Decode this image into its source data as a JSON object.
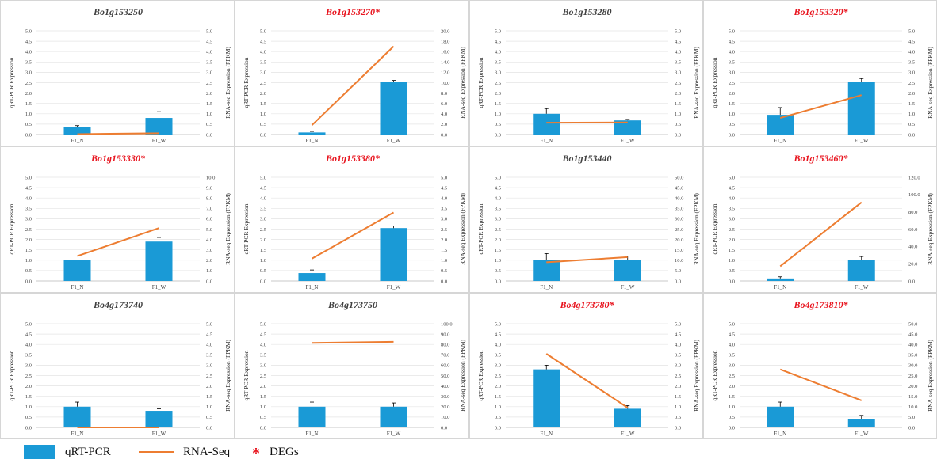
{
  "legend": {
    "bar_label": "qRT-PCR",
    "line_label": "RNA-Seq",
    "star_label": "DEGs",
    "star_symbol": "*"
  },
  "colors": {
    "bar": "#1a9ad6",
    "line": "#ed7d31",
    "deg_title": "#e8141e",
    "normal_title": "#404040"
  },
  "chart_data": [
    {
      "type": "bar",
      "title": "Bo1g153250",
      "deg": false,
      "categories": [
        "F1_N",
        "F1_W"
      ],
      "ylabel": "qRT-PCR Expression",
      "y2label": "RNA-seq Expression (FPKM)",
      "ylim": [
        0,
        5.0
      ],
      "yticks": [
        "0.0",
        "0.5",
        "1.0",
        "1.5",
        "2.0",
        "2.5",
        "3.0",
        "3.5",
        "4.0",
        "4.5",
        "5.0"
      ],
      "y2lim": [
        0,
        5.0
      ],
      "y2ticks": [
        "0.0",
        "0.5",
        "1.0",
        "1.5",
        "2.0",
        "2.5",
        "3.0",
        "3.5",
        "4.0",
        "4.5",
        "5.0"
      ],
      "series": [
        {
          "name": "qRT-PCR",
          "type": "bar",
          "values": [
            0.35,
            0.8
          ],
          "errors": [
            0.08,
            0.3
          ]
        },
        {
          "name": "RNA-Seq",
          "type": "line",
          "axis": "right",
          "values": [
            0.02,
            0.06
          ]
        }
      ]
    },
    {
      "type": "bar",
      "title": "Bo1g153270*",
      "deg": true,
      "categories": [
        "F1_N",
        "F1_W"
      ],
      "ylabel": "qRT-PCR Expression",
      "y2label": "RNA-seq Expression (FPKM)",
      "ylim": [
        0,
        5.0
      ],
      "yticks": [
        "0.0",
        "0.5",
        "1.0",
        "1.5",
        "2.0",
        "2.5",
        "3.0",
        "3.5",
        "4.0",
        "4.5",
        "5.0"
      ],
      "y2lim": [
        0,
        20.0
      ],
      "y2ticks": [
        "0.0",
        "2.0",
        "4.0",
        "6.0",
        "8.0",
        "10.0",
        "12.0",
        "14.0",
        "16.0",
        "18.0",
        "20.0"
      ],
      "series": [
        {
          "name": "qRT-PCR",
          "type": "bar",
          "values": [
            0.1,
            2.55
          ],
          "errors": [
            0.05,
            0.06
          ]
        },
        {
          "name": "RNA-Seq",
          "type": "line",
          "axis": "right",
          "values": [
            1.8,
            17.0
          ]
        }
      ]
    },
    {
      "type": "bar",
      "title": "Bo1g153280",
      "deg": false,
      "categories": [
        "F1_N",
        "F1_W"
      ],
      "ylabel": "qRT-PCR Expression",
      "y2label": "RNA-seq Expression (FPKM)",
      "ylim": [
        0,
        5.0
      ],
      "yticks": [
        "0.0",
        "0.5",
        "1.0",
        "1.5",
        "2.0",
        "2.5",
        "3.0",
        "3.5",
        "4.0",
        "4.5",
        "5.0"
      ],
      "y2lim": [
        0,
        5.0
      ],
      "y2ticks": [
        "0.0",
        "0.5",
        "1.0",
        "1.5",
        "2.0",
        "2.5",
        "3.0",
        "3.5",
        "4.0",
        "4.5",
        "5.0"
      ],
      "series": [
        {
          "name": "qRT-PCR",
          "type": "bar",
          "values": [
            1.0,
            0.68
          ],
          "errors": [
            0.25,
            0.05
          ]
        },
        {
          "name": "RNA-Seq",
          "type": "line",
          "axis": "right",
          "values": [
            0.57,
            0.58
          ]
        }
      ]
    },
    {
      "type": "bar",
      "title": "Bo1g153320*",
      "deg": true,
      "categories": [
        "F1_N",
        "F1_W"
      ],
      "ylabel": "qRT-PCR Expression",
      "y2label": "RNA-seq Expression (FPKM)",
      "ylim": [
        0,
        5.0
      ],
      "yticks": [
        "0.0",
        "0.5",
        "1.0",
        "1.5",
        "2.0",
        "2.5",
        "3.0",
        "3.5",
        "4.0",
        "4.5",
        "5.0"
      ],
      "y2lim": [
        0,
        5.0
      ],
      "y2ticks": [
        "0.0",
        "0.5",
        "1.0",
        "1.5",
        "2.0",
        "2.5",
        "3.0",
        "3.5",
        "4.0",
        "4.5",
        "5.0"
      ],
      "series": [
        {
          "name": "qRT-PCR",
          "type": "bar",
          "values": [
            0.95,
            2.55
          ],
          "errors": [
            0.35,
            0.15
          ]
        },
        {
          "name": "RNA-Seq",
          "type": "line",
          "axis": "right",
          "values": [
            0.8,
            1.9
          ]
        }
      ]
    },
    {
      "type": "bar",
      "title": "Bo1g153330*",
      "deg": true,
      "categories": [
        "F1_N",
        "F1_W"
      ],
      "ylabel": "qRT-PCR Expression",
      "y2label": "RNA-seq Expression (FPKM)",
      "ylim": [
        0,
        5.0
      ],
      "yticks": [
        "0.0",
        "0.5",
        "1.0",
        "1.5",
        "2.0",
        "2.5",
        "3.0",
        "3.5",
        "4.0",
        "4.5",
        "5.0"
      ],
      "y2lim": [
        0,
        10.0
      ],
      "y2ticks": [
        "0.0",
        "1.0",
        "2.0",
        "3.0",
        "4.0",
        "5.0",
        "6.0",
        "7.0",
        "8.0",
        "9.0",
        "10.0"
      ],
      "series": [
        {
          "name": "qRT-PCR",
          "type": "bar",
          "values": [
            1.0,
            1.9
          ],
          "errors": [
            0.0,
            0.2
          ]
        },
        {
          "name": "RNA-Seq",
          "type": "line",
          "axis": "right",
          "values": [
            2.4,
            5.1
          ]
        }
      ]
    },
    {
      "type": "bar",
      "title": "Bo1g153380*",
      "deg": true,
      "categories": [
        "F1_N",
        "F1_W"
      ],
      "ylabel": "qRT-PCR Expression",
      "y2label": "RNA-seq Expression (FPKM)",
      "ylim": [
        0,
        5.0
      ],
      "yticks": [
        "0.0",
        "0.5",
        "1.0",
        "1.5",
        "2.0",
        "2.5",
        "3.0",
        "3.5",
        "4.0",
        "4.5",
        "5.0"
      ],
      "y2lim": [
        0,
        5.0
      ],
      "y2ticks": [
        "0.0",
        "0.5",
        "1.0",
        "1.5",
        "2.0",
        "2.5",
        "3.0",
        "3.5",
        "4.0",
        "4.5",
        "5.0"
      ],
      "series": [
        {
          "name": "qRT-PCR",
          "type": "bar",
          "values": [
            0.38,
            2.55
          ],
          "errors": [
            0.15,
            0.1
          ]
        },
        {
          "name": "RNA-Seq",
          "type": "line",
          "axis": "right",
          "values": [
            1.08,
            3.3
          ]
        }
      ]
    },
    {
      "type": "bar",
      "title": "Bo1g153440",
      "deg": false,
      "categories": [
        "F1_N",
        "F1_W"
      ],
      "ylabel": "qRT-PCR Expression",
      "y2label": "RNA-seq Expression (FPKM)",
      "ylim": [
        0,
        5.0
      ],
      "yticks": [
        "0.0",
        "0.5",
        "1.0",
        "1.5",
        "2.0",
        "2.5",
        "3.0",
        "3.5",
        "4.0",
        "4.5",
        "5.0"
      ],
      "y2lim": [
        0,
        50.0
      ],
      "y2ticks": [
        "0.0",
        "5.0",
        "10.0",
        "15.0",
        "20.0",
        "25.0",
        "30.0",
        "35.0",
        "40.0",
        "45.0",
        "50.0"
      ],
      "series": [
        {
          "name": "qRT-PCR",
          "type": "bar",
          "values": [
            1.02,
            1.0
          ],
          "errors": [
            0.3,
            0.2
          ]
        },
        {
          "name": "RNA-Seq",
          "type": "line",
          "axis": "right",
          "values": [
            9.0,
            11.5
          ]
        }
      ]
    },
    {
      "type": "bar",
      "title": "Bo1g153460*",
      "deg": true,
      "categories": [
        "F1_N",
        "F1_W"
      ],
      "ylabel": "qRT-PCR Expression",
      "y2label": "RNA-seq Expression (FPKM)",
      "ylim": [
        0,
        5.0
      ],
      "yticks": [
        "0.0",
        "0.5",
        "1.0",
        "1.5",
        "2.0",
        "2.5",
        "3.0",
        "3.5",
        "4.0",
        "4.5",
        "5.0"
      ],
      "y2lim": [
        0,
        120.0
      ],
      "y2ticks": [
        "0.0",
        "20.0",
        "40.0",
        "60.0",
        "80.0",
        "100.0",
        "120.0"
      ],
      "series": [
        {
          "name": "qRT-PCR",
          "type": "bar",
          "values": [
            0.12,
            1.0
          ],
          "errors": [
            0.08,
            0.18
          ]
        },
        {
          "name": "RNA-Seq",
          "type": "line",
          "axis": "right",
          "values": [
            17.0,
            91.0
          ]
        }
      ]
    },
    {
      "type": "bar",
      "title": "Bo4g173740",
      "deg": false,
      "categories": [
        "F1_N",
        "F1_W"
      ],
      "ylabel": "qRT-PCR Expression",
      "y2label": "RNA-seq Expression (FPKM)",
      "ylim": [
        0,
        5.0
      ],
      "yticks": [
        "0.0",
        "0.5",
        "1.0",
        "1.5",
        "2.0",
        "2.5",
        "3.0",
        "3.5",
        "4.0",
        "4.5",
        "5.0"
      ],
      "y2lim": [
        0,
        5.0
      ],
      "y2ticks": [
        "0.0",
        "0.5",
        "1.0",
        "1.5",
        "2.0",
        "2.5",
        "3.0",
        "3.5",
        "4.0",
        "4.5",
        "5.0"
      ],
      "series": [
        {
          "name": "qRT-PCR",
          "type": "bar",
          "values": [
            1.0,
            0.8
          ],
          "errors": [
            0.22,
            0.1
          ]
        },
        {
          "name": "RNA-Seq",
          "type": "line",
          "axis": "right",
          "values": [
            0.0,
            0.0
          ]
        }
      ]
    },
    {
      "type": "bar",
      "title": "Bo4g173750",
      "deg": false,
      "categories": [
        "F1_N",
        "F1_W"
      ],
      "ylabel": "qRT-PCR Expression",
      "y2label": "RNA-seq Expression (FPKM)",
      "ylim": [
        0,
        5.0
      ],
      "yticks": [
        "0.0",
        "0.5",
        "1.0",
        "1.5",
        "2.0",
        "2.5",
        "3.0",
        "3.5",
        "4.0",
        "4.5",
        "5.0"
      ],
      "y2lim": [
        0,
        100.0
      ],
      "y2ticks": [
        "0.0",
        "10.0",
        "20.0",
        "30.0",
        "40.0",
        "50.0",
        "60.0",
        "70.0",
        "80.0",
        "90.0",
        "100.0"
      ],
      "series": [
        {
          "name": "qRT-PCR",
          "type": "bar",
          "values": [
            1.0,
            1.0
          ],
          "errors": [
            0.22,
            0.18
          ]
        },
        {
          "name": "RNA-Seq",
          "type": "line",
          "axis": "right",
          "values": [
            81.5,
            82.5
          ]
        }
      ]
    },
    {
      "type": "bar",
      "title": "Bo4g173780*",
      "deg": true,
      "categories": [
        "F1_N",
        "F1_W"
      ],
      "ylabel": "qRT-PCR Expression",
      "y2label": "RNA-seq Expression (FPKM)",
      "ylim": [
        0,
        5.0
      ],
      "yticks": [
        "0.0",
        "0.5",
        "1.0",
        "1.5",
        "2.0",
        "2.5",
        "3.0",
        "3.5",
        "4.0",
        "4.5",
        "5.0"
      ],
      "y2lim": [
        0,
        5.0
      ],
      "y2ticks": [
        "0.0",
        "0.5",
        "1.0",
        "1.5",
        "2.0",
        "2.5",
        "3.0",
        "3.5",
        "4.0",
        "4.5",
        "5.0"
      ],
      "series": [
        {
          "name": "qRT-PCR",
          "type": "bar",
          "values": [
            2.8,
            0.9
          ],
          "errors": [
            0.2,
            0.15
          ]
        },
        {
          "name": "RNA-Seq",
          "type": "line",
          "axis": "right",
          "values": [
            3.55,
            0.95
          ]
        }
      ]
    },
    {
      "type": "bar",
      "title": "Bo4g173810*",
      "deg": true,
      "categories": [
        "F1_N",
        "F1_W"
      ],
      "ylabel": "qRT-PCR Expression",
      "y2label": "RNA-seq Expression (FPKM)",
      "ylim": [
        0,
        5.0
      ],
      "yticks": [
        "0.0",
        "0.5",
        "1.0",
        "1.5",
        "2.0",
        "2.5",
        "3.0",
        "3.5",
        "4.0",
        "4.5",
        "5.0"
      ],
      "y2lim": [
        0,
        50.0
      ],
      "y2ticks": [
        "0.0",
        "5.0",
        "10.0",
        "15.0",
        "20.0",
        "25.0",
        "30.0",
        "35.0",
        "40.0",
        "45.0",
        "50.0"
      ],
      "series": [
        {
          "name": "qRT-PCR",
          "type": "bar",
          "values": [
            1.0,
            0.4
          ],
          "errors": [
            0.22,
            0.18
          ]
        },
        {
          "name": "RNA-Seq",
          "type": "line",
          "axis": "right",
          "values": [
            28.0,
            13.0
          ]
        }
      ]
    }
  ]
}
